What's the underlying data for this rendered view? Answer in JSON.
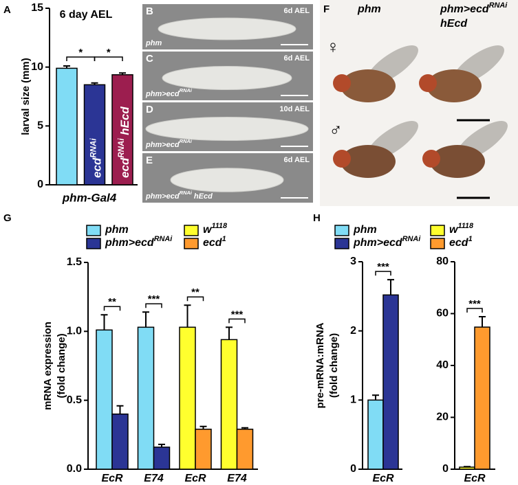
{
  "chart_data": [
    {
      "type": "bar",
      "letter": "A",
      "title": "6 day AEL",
      "ylabel": "larval size (mm)",
      "xlabel": "phm-Gal4",
      "ylim": [
        0,
        15
      ],
      "yticks": [
        0,
        5,
        10,
        15
      ],
      "categories": [
        null,
        [
          {
            "text": "ecd"
          },
          {
            "text": "RNAi",
            "sup": true
          }
        ],
        [
          {
            "text": "ecd"
          },
          {
            "text": "RNAi",
            "sup": true
          },
          {
            "text": " hEcd"
          }
        ]
      ],
      "values": [
        9.9,
        8.5,
        9.35
      ],
      "errors": [
        0.2,
        0.15,
        0.15
      ],
      "colors": [
        "#80dcf5",
        "#2b3595",
        "#9c1e4f"
      ],
      "significance": [
        {
          "bars": [
            0,
            1
          ],
          "label": "*"
        },
        {
          "bars": [
            1,
            2
          ],
          "label": "*"
        }
      ]
    },
    {
      "type": "bar",
      "letter": "G",
      "ylabel": [
        "mRNA expression",
        "(fold change)"
      ],
      "ylim": [
        0,
        1.5
      ],
      "yticks": [
        {
          "value": 0,
          "label": "0.0"
        },
        0.5,
        {
          "value": 1,
          "label": "1.0"
        },
        1.5
      ],
      "categories": [
        "EcR",
        "E74",
        "EcR",
        "E74"
      ],
      "series": [
        {
          "name": [
            {
              "text": "phm"
            }
          ],
          "color": "#80dcf5",
          "values": [
            1.01,
            1.03,
            null,
            null
          ],
          "errors": [
            0.11,
            0.11,
            null,
            null
          ]
        },
        {
          "name": [
            {
              "text": "phm>ecd"
            },
            {
              "text": "RNAi",
              "sup": true
            }
          ],
          "color": "#2b3595",
          "values": [
            0.4,
            0.16,
            null,
            null
          ],
          "errors": [
            0.06,
            0.02,
            null,
            null
          ]
        },
        {
          "name": [
            {
              "text": "w"
            },
            {
              "text": "1118",
              "sup": true
            }
          ],
          "color": "#ffff2e",
          "values": [
            null,
            null,
            1.03,
            0.94
          ],
          "errors": [
            null,
            null,
            0.16,
            0.09
          ]
        },
        {
          "name": [
            {
              "text": "ecd"
            },
            {
              "text": "1",
              "sup": true
            }
          ],
          "color": "#ff9a2e",
          "values": [
            null,
            null,
            0.29,
            0.29
          ],
          "errors": [
            null,
            null,
            0.02,
            0.01
          ]
        }
      ],
      "significance": [
        {
          "category": 0,
          "label": "**"
        },
        {
          "category": 1,
          "label": "***"
        },
        {
          "category": 2,
          "label": "**"
        },
        {
          "category": 3,
          "label": "***"
        }
      ]
    },
    {
      "type": "bar",
      "letter": "H",
      "ylabel": [
        "pre-mRNA:mRNA",
        "(fold change)"
      ],
      "ylim": [
        0,
        3
      ],
      "yticks": [
        0,
        1,
        2,
        3
      ],
      "categories": [
        "EcR"
      ],
      "series": [
        {
          "name": [
            {
              "text": "phm"
            }
          ],
          "color": "#80dcf5",
          "values": [
            1.0
          ],
          "errors": [
            0.07
          ]
        },
        {
          "name": [
            {
              "text": "phm>ecd"
            },
            {
              "text": "RNAi",
              "sup": true
            }
          ],
          "color": "#2b3595",
          "values": [
            2.52
          ],
          "errors": [
            0.22
          ]
        }
      ],
      "significance": [
        {
          "category": 0,
          "label": "***"
        }
      ]
    },
    {
      "type": "bar",
      "ylim": [
        0,
        80
      ],
      "yticks": [
        0,
        20,
        40,
        60,
        80
      ],
      "categories": [
        "EcR"
      ],
      "series": [
        {
          "name": [
            {
              "text": "w"
            },
            {
              "text": "1118",
              "sup": true
            }
          ],
          "color": "#ffff2e",
          "values": [
            0.8
          ],
          "errors": [
            0.2
          ]
        },
        {
          "name": [
            {
              "text": "ecd"
            },
            {
              "text": "1",
              "sup": true
            }
          ],
          "color": "#ff9a2e",
          "values": [
            54.8
          ],
          "errors": [
            4
          ]
        }
      ],
      "significance": [
        {
          "category": 0,
          "label": "***"
        }
      ]
    }
  ],
  "larva_panels": [
    {
      "letter": "B",
      "time": "6d AEL",
      "genotype": [
        {
          "text": "phm"
        }
      ]
    },
    {
      "letter": "C",
      "time": "6d AEL",
      "genotype": [
        {
          "text": "phm>ecd"
        },
        {
          "text": "RNAi",
          "sup": true
        }
      ]
    },
    {
      "letter": "D",
      "time": "10d AEL",
      "genotype": [
        {
          "text": "phm>ecd"
        },
        {
          "text": "RNAi",
          "sup": true
        }
      ]
    },
    {
      "letter": "E",
      "time": "6d AEL",
      "genotype": [
        {
          "text": "phm>ecd"
        },
        {
          "text": "RNAi",
          "sup": true
        },
        {
          "text": " hEcd"
        }
      ]
    }
  ],
  "fly_panel": {
    "letter": "F",
    "columns": [
      [
        [
          {
            "text": "phm"
          }
        ]
      ],
      [
        [
          {
            "text": "phm>ecd"
          },
          {
            "text": "RNAi",
            "sup": true
          }
        ],
        [
          {
            "text": "hEcd"
          }
        ]
      ]
    ],
    "female": "♀",
    "male": "♂"
  }
}
